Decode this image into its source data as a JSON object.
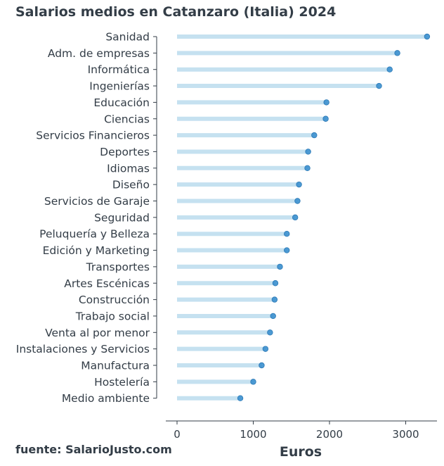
{
  "title": "Salarios medios en Catanzaro (Italia) 2024",
  "source": "fuente: SalarioJusto.com",
  "colors": {
    "bar": "#c5e1f0",
    "dot": "#3a8fce",
    "dot_edge": "#2a78b5",
    "text": "#333d47",
    "axis": "#333d47"
  },
  "chart_data": {
    "type": "lollipop",
    "orientation": "horizontal",
    "xlabel": "Euros",
    "ylabel": "",
    "xlim": [
      0,
      3450
    ],
    "xticks": [
      0,
      1000,
      2000,
      3000
    ],
    "grid": false,
    "categories": [
      "Sanidad",
      "Adm. de empresas",
      "Informática",
      "Ingenierías",
      "Educación",
      "Ciencias",
      "Servicios Financieros",
      "Deportes",
      "Idiomas",
      "Diseño",
      "Servicios de Garaje",
      "Seguridad",
      "Peluquería y Belleza",
      "Edición y Marketing",
      "Transportes",
      "Artes Escénicas",
      "Construcción",
      "Trabajo social",
      "Venta al por menor",
      "Instalaciones y Servicios",
      "Manufactura",
      "Hostelería",
      "Medio ambiente"
    ],
    "values": [
      3280,
      2890,
      2790,
      2650,
      1960,
      1950,
      1800,
      1720,
      1710,
      1600,
      1580,
      1550,
      1440,
      1440,
      1350,
      1290,
      1280,
      1260,
      1220,
      1160,
      1110,
      1000,
      830
    ]
  }
}
